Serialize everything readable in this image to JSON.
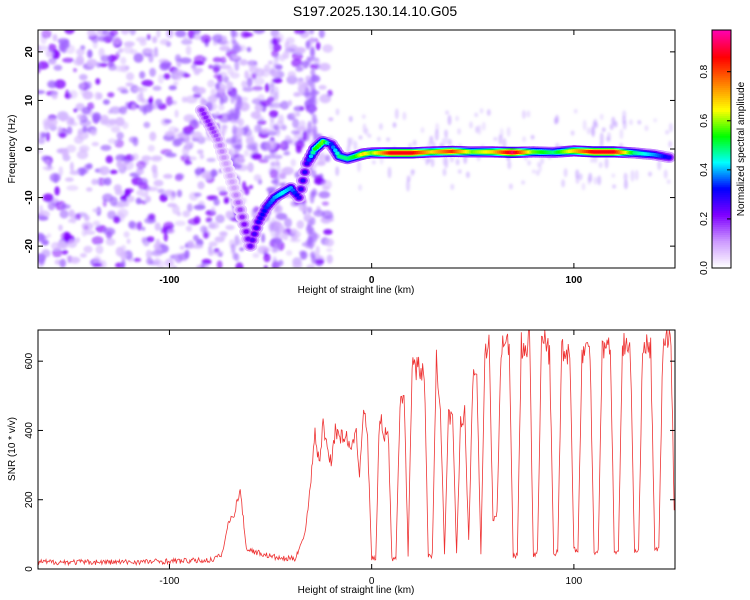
{
  "page": {
    "title": "S197.2025.130.14.10.G05"
  },
  "chart_data": [
    {
      "type": "heatmap",
      "xlabel": "Height of straight line (km)",
      "ylabel": "Frequency (Hz)",
      "xlim": [
        -165,
        150
      ],
      "ylim": [
        -24.5,
        24.5
      ],
      "x_ticks": [
        -100,
        0,
        100
      ],
      "y_ticks": [
        -20,
        -10,
        0,
        10,
        20
      ],
      "colorbar": {
        "label": "Normalized spectral amplitude",
        "range": [
          0,
          0.97
        ],
        "ticks": [
          0.0,
          0.2,
          0.4,
          0.6,
          0.8
        ],
        "colors": [
          "#ffffff",
          "#cc99ff",
          "#7f00ff",
          "#0000ff",
          "#00ffff",
          "#00ff00",
          "#ffff00",
          "#ff8000",
          "#ff0000",
          "#ff00aa"
        ]
      },
      "ridge": {
        "x": [
          -84,
          -80,
          -76,
          -72,
          -68,
          -64,
          -60,
          -56,
          -52,
          -48,
          -44,
          -40,
          -36,
          -32,
          -28,
          -24,
          -20,
          -16,
          -12,
          -8,
          -4,
          0,
          10,
          20,
          30,
          40,
          50,
          60,
          70,
          80,
          90,
          100,
          110,
          120,
          130,
          140,
          148
        ],
        "y": [
          8,
          5,
          2,
          -3,
          -8,
          -14,
          -20,
          -15,
          -12,
          -10,
          -9,
          -8,
          -10,
          -3,
          0,
          1.5,
          1,
          -1.5,
          -2,
          -1.5,
          -1,
          -0.8,
          -0.8,
          -0.8,
          -0.6,
          -0.5,
          -0.6,
          -0.6,
          -0.7,
          -0.6,
          -0.7,
          -0.4,
          -0.6,
          -0.6,
          -0.8,
          -1.2,
          -1.8
        ],
        "amplitude": [
          0.2,
          0.2,
          0.15,
          0.1,
          0.1,
          0.2,
          0.25,
          0.3,
          0.35,
          0.4,
          0.45,
          0.4,
          0.3,
          0.3,
          0.55,
          0.6,
          0.35,
          0.5,
          0.5,
          0.55,
          0.7,
          0.6,
          0.9,
          0.9,
          0.7,
          0.85,
          0.6,
          0.7,
          0.95,
          0.6,
          0.5,
          0.7,
          0.9,
          0.9,
          0.5,
          0.4,
          0.3
        ]
      }
    },
    {
      "type": "line",
      "xlabel": "Height of straight line (km)",
      "ylabel": "SNR (10 * v/v)",
      "xlim": [
        -165,
        150
      ],
      "ylim": [
        0,
        690
      ],
      "x_ticks": [
        -100,
        0,
        100
      ],
      "y_ticks": [
        0,
        200,
        400,
        600
      ],
      "series": [
        {
          "color": "#ee3333",
          "x": [
            -165,
            -120,
            -80,
            -74,
            -71,
            -68,
            -65,
            -62,
            -58,
            -52,
            -45,
            -38,
            -33,
            -30,
            -28,
            -26,
            -24,
            -22,
            -20,
            -18,
            -15,
            -12,
            -10,
            -8,
            -6,
            -4,
            -2,
            0,
            2,
            4,
            6,
            8,
            10,
            12,
            14,
            16,
            18,
            20,
            22,
            24,
            26,
            28,
            30,
            32,
            34,
            36,
            38,
            40,
            42,
            44,
            46,
            48,
            50,
            52,
            54,
            56,
            58,
            60,
            62,
            64,
            66,
            68,
            70,
            72,
            74,
            76,
            78,
            80,
            82,
            84,
            86,
            88,
            90,
            92,
            94,
            96,
            98,
            100,
            102,
            104,
            106,
            108,
            110,
            112,
            114,
            116,
            118,
            120,
            122,
            124,
            126,
            128,
            130,
            132,
            134,
            136,
            138,
            140,
            142,
            144,
            146,
            148,
            150
          ],
          "y": [
            20,
            20,
            25,
            40,
            130,
            160,
            230,
            60,
            50,
            40,
            30,
            30,
            100,
            260,
            400,
            300,
            420,
            350,
            310,
            400,
            380,
            380,
            330,
            410,
            280,
            470,
            370,
            30,
            30,
            450,
            380,
            420,
            30,
            30,
            480,
            520,
            40,
            600,
            580,
            580,
            560,
            40,
            40,
            600,
            480,
            40,
            440,
            430,
            40,
            430,
            450,
            80,
            560,
            570,
            40,
            640,
            650,
            140,
            160,
            640,
            650,
            650,
            40,
            40,
            650,
            620,
            680,
            40,
            50,
            650,
            660,
            620,
            40,
            50,
            640,
            630,
            620,
            60,
            50,
            620,
            640,
            620,
            50,
            50,
            650,
            630,
            660,
            50,
            50,
            650,
            640,
            620,
            50,
            50,
            660,
            640,
            640,
            50,
            60,
            640,
            670,
            650,
            60
          ]
        }
      ]
    }
  ]
}
